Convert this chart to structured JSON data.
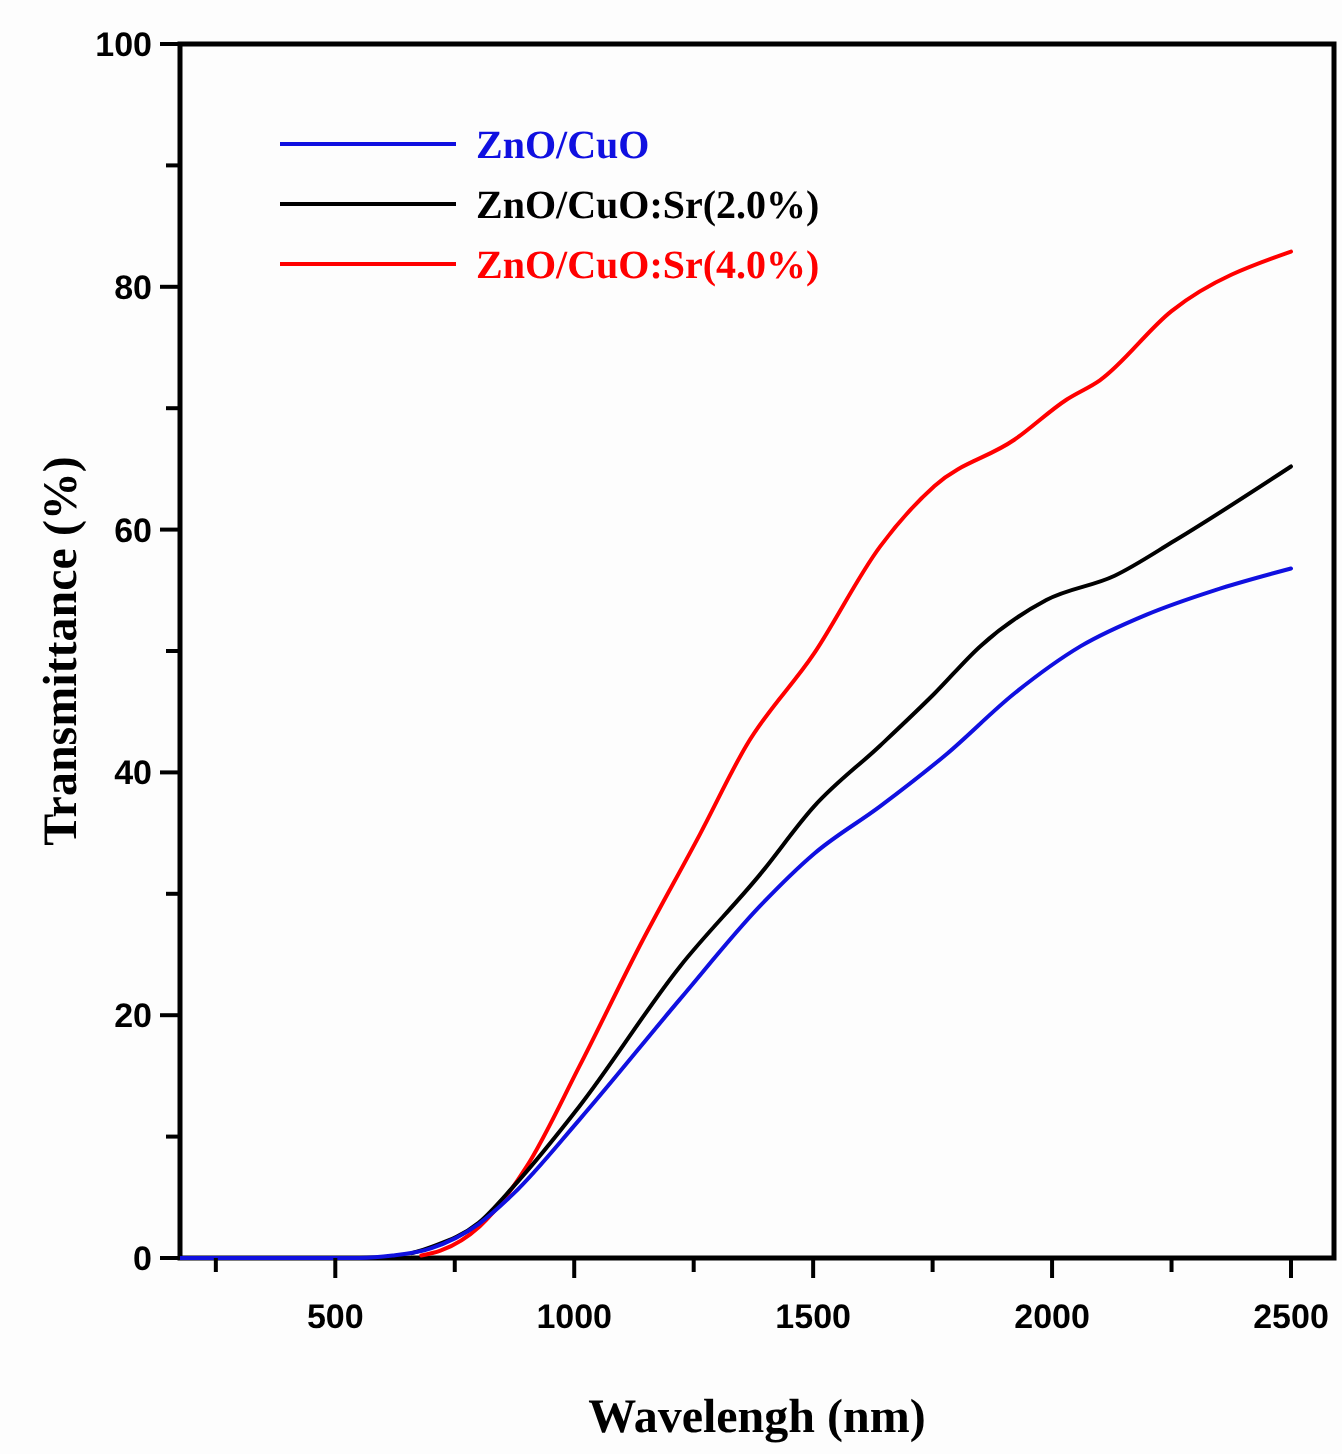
{
  "chart_data": {
    "type": "line",
    "xlabel": "Wavelengh (nm)",
    "ylabel": "Transmittance (%)",
    "xlim": [
      175,
      2590
    ],
    "ylim": [
      0,
      100
    ],
    "xticks": [
      {
        "value": 250,
        "label": null
      },
      500,
      {
        "value": 750,
        "label": null
      },
      1000,
      {
        "value": 1250,
        "label": null
      },
      1500,
      {
        "value": 1750,
        "label": null
      },
      2000,
      {
        "value": 2250,
        "label": null
      },
      2500
    ],
    "yticks": [
      0,
      {
        "value": 10,
        "label": null
      },
      20,
      {
        "value": 30,
        "label": null
      },
      40,
      {
        "value": 50,
        "label": null
      },
      60,
      {
        "value": 70,
        "label": null
      },
      80,
      {
        "value": 90,
        "label": null
      },
      100
    ],
    "legend": "top left",
    "grid": false,
    "marker": "none",
    "line_style": "solid",
    "series": [
      {
        "name": "ZnO/CuO",
        "color": "#1010e0",
        "x": [
          175,
          400,
          550,
          620,
          700,
          800,
          873,
          1011,
          1221,
          1389,
          1502,
          1640,
          1779,
          1921,
          2060,
          2198,
          2340,
          2500
        ],
        "values": [
          0,
          0,
          0,
          0.2,
          0.8,
          2.8,
          5.3,
          11.4,
          21.3,
          29.0,
          33.3,
          37.2,
          41.5,
          46.5,
          50.4,
          53.0,
          55.0,
          56.8
        ]
      },
      {
        "name": "ZnO/CuO:Sr(2.0%)",
        "color": "#000000",
        "x": [
          660,
          700,
          800,
          873,
          1011,
          1221,
          1389,
          1502,
          1640,
          1754,
          1850,
          1988,
          2131,
          2257,
          2500
        ],
        "values": [
          0.4,
          0.9,
          2.9,
          5.9,
          12.5,
          24.0,
          31.6,
          37.2,
          42.2,
          46.5,
          50.4,
          54.2,
          56.2,
          59.1,
          65.2
        ]
      },
      {
        "name": "ZnO/CuO:Sr(4.0%)",
        "color": "#ff0000",
        "x": [
          680,
          720,
          802,
          900,
          1011,
          1137,
          1263,
          1360,
          1502,
          1640,
          1754,
          1921,
          2030,
          2100,
          2250,
          2500
        ],
        "values": [
          0.2,
          0.6,
          2.6,
          7.5,
          15.8,
          25.7,
          34.9,
          42.2,
          49.8,
          58.6,
          63.6,
          67.4,
          70.7,
          72.3,
          78.0,
          82.9
        ]
      }
    ]
  }
}
